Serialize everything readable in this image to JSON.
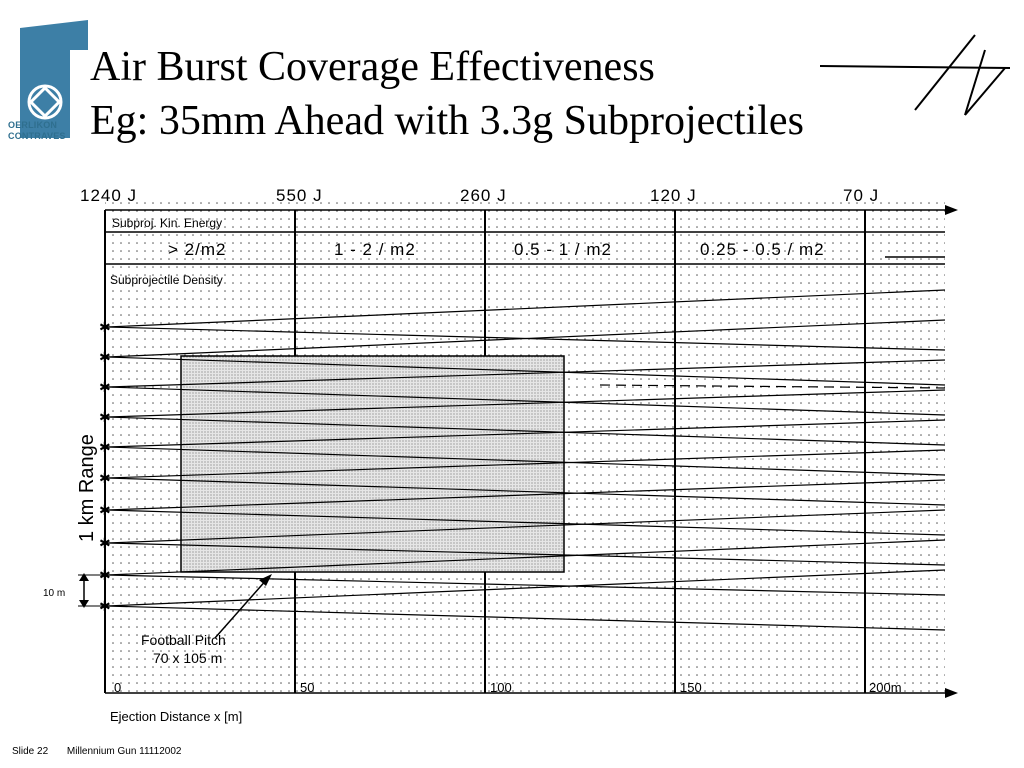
{
  "logo": {
    "line1": "OERLIKON",
    "line2": "CONTRAVES",
    "brand_color": "#2f6f8f"
  },
  "title": {
    "line1": "Air Burst Coverage Effectiveness",
    "line2": "Eg: 35mm Ahead with 3.3g Subprojectiles"
  },
  "diagram": {
    "energy_ticks": [
      "1240 J",
      "550 J",
      "260 J",
      "120 J",
      "70 J"
    ],
    "energy_row_label": "Subproj. Kin. Energy",
    "density_values": [
      "> 2/m2",
      "1 - 2 / m2",
      "0.5 - 1 / m2",
      "0.25 - 0.5 / m2"
    ],
    "density_row_label": "Subprojectile Density",
    "y_axis_label": "1 km Range",
    "spacing_label": "10 m",
    "pitch_label_line1": "Football Pitch",
    "pitch_label_line2": "70 x 105 m",
    "x_ticks": [
      "0",
      "50",
      "100",
      "150",
      "200m"
    ],
    "x_axis_label": "Ejection Distance x [m]",
    "x_tick_values": [
      0,
      50,
      100,
      150,
      200
    ],
    "pitch_size_m": [
      70,
      105
    ]
  },
  "footer": {
    "slide": "Slide 22",
    "doc": "Millennium Gun 11112002"
  }
}
